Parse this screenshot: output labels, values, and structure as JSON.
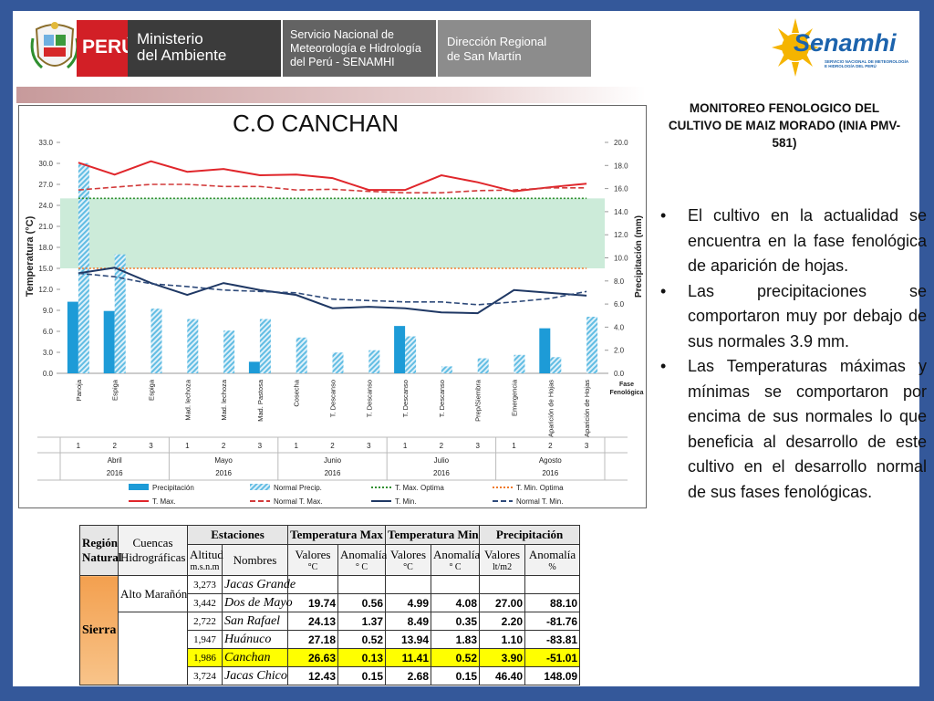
{
  "header": {
    "peru": "PERÚ",
    "ministry": "Ministerio\ndel Ambiente",
    "service": "Servicio Nacional de\nMeteorología e Hidrología\ndel Perú - SENAMHI",
    "directorate": "Dirección Regional\nde San Martín",
    "brand": "Senamhi",
    "brand_sub": "SERVICIO NACIONAL DE METEOROLOGÍA\nE HIDROLOGÍA DEL PERÚ"
  },
  "chart_data": {
    "type": "combo",
    "title": "C.O CANCHAN",
    "ylabel": "Temperatura (°C)",
    "y2label": "Precipitación (mm)",
    "category_axis_label": [
      "Fase",
      "Fenológica"
    ],
    "categories": [
      "Panoja",
      "Espiga",
      "Espiga",
      "Mad. lechoza",
      "Mad. lechoza",
      "Mad. Pastosa",
      "Cosecha",
      "T. Descanso",
      "T. Descanso",
      "T. Descanso",
      "T. Descanso",
      "Prep/Siembra",
      "Emergencia",
      "Aparición de Hojas",
      "Aparición de Hojas"
    ],
    "decades": [
      1,
      2,
      3,
      1,
      2,
      3,
      1,
      2,
      3,
      1,
      2,
      3,
      1,
      2,
      3
    ],
    "months": [
      {
        "name": "Abril",
        "year": "2016"
      },
      {
        "name": "Mayo",
        "year": "2016"
      },
      {
        "name": "Junio",
        "year": "2016"
      },
      {
        "name": "Julio",
        "year": "2016"
      },
      {
        "name": "Agosto",
        "year": "2016"
      }
    ],
    "ylim": [
      0,
      33
    ],
    "yticks": [
      {
        "value": 0,
        "label": "0.0"
      },
      {
        "value": 3,
        "label": "3.0"
      },
      {
        "value": 6,
        "label": "6.0"
      },
      {
        "value": 9,
        "label": "9.0"
      },
      {
        "value": 12,
        "label": "12.0"
      },
      {
        "value": 15,
        "label": "15.0"
      },
      {
        "value": 18,
        "label": "18.0"
      },
      {
        "value": 21,
        "label": "21.0"
      },
      {
        "value": 24,
        "label": "24.0"
      },
      {
        "value": 27,
        "label": "27.0"
      },
      {
        "value": 30,
        "label": "30.0"
      },
      {
        "value": 33,
        "label": "33.0"
      }
    ],
    "y2lim": [
      0,
      20
    ],
    "y2ticks": [
      {
        "value": 0,
        "label": "0.0"
      },
      {
        "value": 2,
        "label": "2.0"
      },
      {
        "value": 4,
        "label": "4.0"
      },
      {
        "value": 6,
        "label": "6.0"
      },
      {
        "value": 8,
        "label": "8.0"
      },
      {
        "value": 10,
        "label": "10.0"
      },
      {
        "value": 12,
        "label": "12.0"
      },
      {
        "value": 14,
        "label": "14.0"
      },
      {
        "value": 16,
        "label": "16.0"
      },
      {
        "value": 18,
        "label": "18.0"
      },
      {
        "value": 20,
        "label": "20.0"
      }
    ],
    "grid": false,
    "optimal_band_color": "#bfe6cf",
    "series": [
      {
        "name": "Precipitación",
        "kind": "bar",
        "axis": "y2",
        "color": "#1d9bd7",
        "values": [
          6.2,
          5.4,
          0,
          0,
          0,
          1.0,
          0,
          0,
          0,
          4.1,
          0,
          0,
          0,
          3.9,
          0
        ]
      },
      {
        "name": "Normal Precip.",
        "kind": "bar",
        "axis": "y2",
        "color": "#62bde3",
        "pattern": "hatched",
        "values": [
          18.2,
          10.3,
          5.6,
          4.7,
          3.7,
          4.7,
          3.1,
          1.8,
          2.0,
          3.2,
          0.6,
          1.3,
          1.6,
          1.4,
          4.9
        ]
      },
      {
        "name": "T. Max. Optima",
        "kind": "line",
        "axis": "y",
        "color": "#2f8f2f",
        "dash": "dotted",
        "values": [
          25,
          25,
          25,
          25,
          25,
          25,
          25,
          25,
          25,
          25,
          25,
          25,
          25,
          25,
          25
        ]
      },
      {
        "name": "T. Min. Optima",
        "kind": "line",
        "axis": "y",
        "color": "#f07a2a",
        "dash": "dotted",
        "values": [
          15,
          15,
          15,
          15,
          15,
          15,
          15,
          15,
          15,
          15,
          15,
          15,
          15,
          15,
          15
        ]
      },
      {
        "name": "T. Max.",
        "kind": "line",
        "axis": "y",
        "color": "#e0262b",
        "dash": "solid",
        "values": [
          30.1,
          28.4,
          30.3,
          28.8,
          29.2,
          28.3,
          28.4,
          27.9,
          26.2,
          26.2,
          28.3,
          27.3,
          26.0,
          26.6,
          27.1
        ]
      },
      {
        "name": "Normal T. Max.",
        "kind": "line",
        "axis": "y",
        "color": "#d23a3a",
        "dash": "dashed",
        "values": [
          26.2,
          26.6,
          27.0,
          27.0,
          26.7,
          26.7,
          26.2,
          26.3,
          26.0,
          25.8,
          25.8,
          26.1,
          26.2,
          26.5,
          26.5
        ]
      },
      {
        "name": "T. Min.",
        "kind": "line",
        "axis": "y",
        "color": "#1f3864",
        "dash": "solid",
        "values": [
          14.3,
          15.1,
          12.9,
          11.2,
          12.9,
          11.9,
          11.2,
          9.3,
          9.5,
          9.3,
          8.7,
          8.6,
          11.9,
          11.5,
          11.1
        ]
      },
      {
        "name": "Normal T. Min.",
        "kind": "line",
        "axis": "y",
        "color": "#2e4a7a",
        "dash": "dashed",
        "values": [
          14.3,
          13.8,
          12.8,
          12.4,
          11.9,
          11.7,
          11.5,
          10.6,
          10.4,
          10.2,
          10.2,
          9.8,
          10.2,
          10.7,
          11.7
        ]
      }
    ]
  },
  "sidebar": {
    "heading": "MONITOREO FENOLOGICO DEL CULTIVO DE MAIZ MORADO (INIA PMV-581)",
    "bullets": [
      "El cultivo en la actualidad se encuentra en la fase  fenológica de aparición de hojas.",
      "Las precipitaciones se comportaron muy por debajo de sus normales 3.9 mm.",
      "Las Temperaturas máximas y  mínimas se comportaron por encima de sus normales lo que beneficia al desarrollo de este cultivo en el desarrollo normal de sus fases fenológicas."
    ]
  },
  "table": {
    "region_header": "Región Natural",
    "basin_header": "Cuencas Hidrográficas",
    "groups": [
      "Estaciones",
      "Temperatura Max",
      "Temperatura Min",
      "Precipitación"
    ],
    "columns": [
      {
        "name": "Altitud",
        "unit": "m.s.n.m"
      },
      {
        "name": "Nombres"
      },
      {
        "name": "Valores",
        "unit": "°C"
      },
      {
        "name": "Anomalía",
        "unit": "° C"
      },
      {
        "name": "Valores",
        "unit": "°C"
      },
      {
        "name": "Anomalía",
        "unit": "° C"
      },
      {
        "name": "Valores",
        "unit": "lt/m2"
      },
      {
        "name": "Anomalía",
        "unit": "%"
      }
    ],
    "region": "Sierra",
    "basin": "Alto Marañón",
    "highlight": {
      "row": 4,
      "color": "#ffff00"
    },
    "rows": [
      [
        "3,273",
        "Jacas Grande"
      ],
      [
        "3,442",
        "Dos de Mayo",
        "19.74",
        "0.56",
        "4.99",
        "4.08",
        "27.00",
        "88.10"
      ],
      [
        "2,722",
        "San Rafael",
        "24.13",
        "1.37",
        "8.49",
        "0.35",
        "2.20",
        "-81.76"
      ],
      [
        "1,947",
        "Huánuco",
        "27.18",
        "0.52",
        "13.94",
        "1.83",
        "1.10",
        "-83.81"
      ],
      [
        "1,986",
        "Canchan",
        "26.63",
        "0.13",
        "11.41",
        "0.52",
        "3.90",
        "-51.01"
      ],
      [
        "3,724",
        "Jacas Chico",
        "12.43",
        "0.15",
        "2.68",
        "0.15",
        "46.40",
        "148.09"
      ]
    ]
  }
}
